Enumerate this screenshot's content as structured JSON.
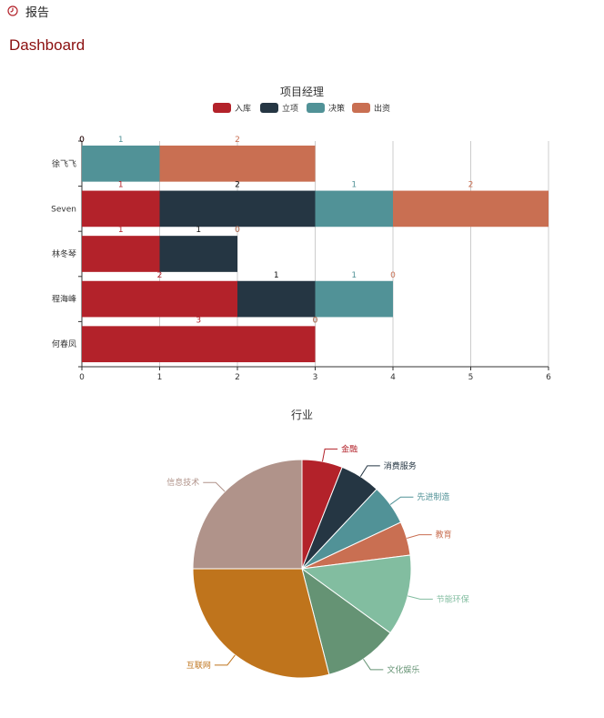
{
  "header": {
    "icon": "clock-icon",
    "title": "报告"
  },
  "page": {
    "title": "Dashboard"
  },
  "colors": {
    "ruku": "#b3222a",
    "lixiang": "#253643",
    "juece": "#519297",
    "chuzi": "#c96f52",
    "title_red": "#8b0f0f"
  },
  "chart_data": [
    {
      "type": "bar",
      "orientation": "horizontal",
      "stacked": true,
      "title": "项目经理",
      "legend_position": "top-center",
      "grid": "vertical",
      "categories": [
        "徐飞飞",
        "Seven",
        "林冬琴",
        "程海峰",
        "何春凤"
      ],
      "xlim": [
        0,
        6
      ],
      "xticks": [
        0,
        1,
        2,
        3,
        4,
        5,
        6
      ],
      "series": [
        {
          "name": "入库",
          "color": "#b3222a",
          "values": [
            0,
            1,
            1,
            2,
            3
          ]
        },
        {
          "name": "立项",
          "color": "#253643",
          "values": [
            0,
            2,
            1,
            1,
            0
          ]
        },
        {
          "name": "决策",
          "color": "#519297",
          "values": [
            1,
            1,
            0,
            1,
            0
          ]
        },
        {
          "name": "出资",
          "color": "#c96f52",
          "values": [
            2,
            2,
            0,
            0,
            0
          ]
        }
      ]
    },
    {
      "type": "pie",
      "title": "行业",
      "slices": [
        {
          "label": "金融",
          "value": 6,
          "color": "#b3222a"
        },
        {
          "label": "消费服务",
          "value": 6,
          "color": "#253643"
        },
        {
          "label": "先进制造",
          "value": 6,
          "color": "#519297"
        },
        {
          "label": "教育",
          "value": 5,
          "color": "#c96f52"
        },
        {
          "label": "节能环保",
          "value": 12,
          "color": "#82bda0"
        },
        {
          "label": "文化娱乐",
          "value": 11,
          "color": "#659374"
        },
        {
          "label": "互联网",
          "value": 29,
          "color": "#bf741c"
        },
        {
          "label": "信息技术",
          "value": 25,
          "color": "#b0938a"
        }
      ]
    }
  ]
}
